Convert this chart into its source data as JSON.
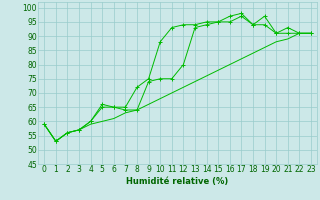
{
  "title": "",
  "xlabel": "Humidité relative (%)",
  "ylabel": "",
  "background_color": "#cce8e8",
  "grid_color": "#99cccc",
  "line_color": "#00bb00",
  "x_values": [
    0,
    1,
    2,
    3,
    4,
    5,
    6,
    7,
    8,
    9,
    10,
    11,
    12,
    13,
    14,
    15,
    16,
    17,
    18,
    19,
    20,
    21,
    22,
    23
  ],
  "line1": [
    59,
    53,
    56,
    57,
    60,
    66,
    65,
    65,
    72,
    75,
    88,
    93,
    94,
    94,
    95,
    95,
    97,
    98,
    94,
    97,
    91,
    93,
    91,
    91
  ],
  "line2": [
    59,
    53,
    56,
    57,
    60,
    65,
    65,
    64,
    64,
    74,
    75,
    75,
    80,
    93,
    94,
    95,
    95,
    97,
    94,
    94,
    91,
    91,
    91,
    91
  ],
  "line3": [
    59,
    53,
    56,
    57,
    59,
    60,
    61,
    63,
    64,
    66,
    68,
    70,
    72,
    74,
    76,
    78,
    80,
    82,
    84,
    86,
    88,
    89,
    91,
    91
  ],
  "xlim": [
    -0.5,
    23.5
  ],
  "ylim": [
    45,
    102
  ],
  "yticks": [
    45,
    50,
    55,
    60,
    65,
    70,
    75,
    80,
    85,
    90,
    95,
    100
  ],
  "xticks": [
    0,
    1,
    2,
    3,
    4,
    5,
    6,
    7,
    8,
    9,
    10,
    11,
    12,
    13,
    14,
    15,
    16,
    17,
    18,
    19,
    20,
    21,
    22,
    23
  ],
  "font_color": "#006600",
  "xlabel_fontsize": 6,
  "tick_fontsize": 5.5
}
